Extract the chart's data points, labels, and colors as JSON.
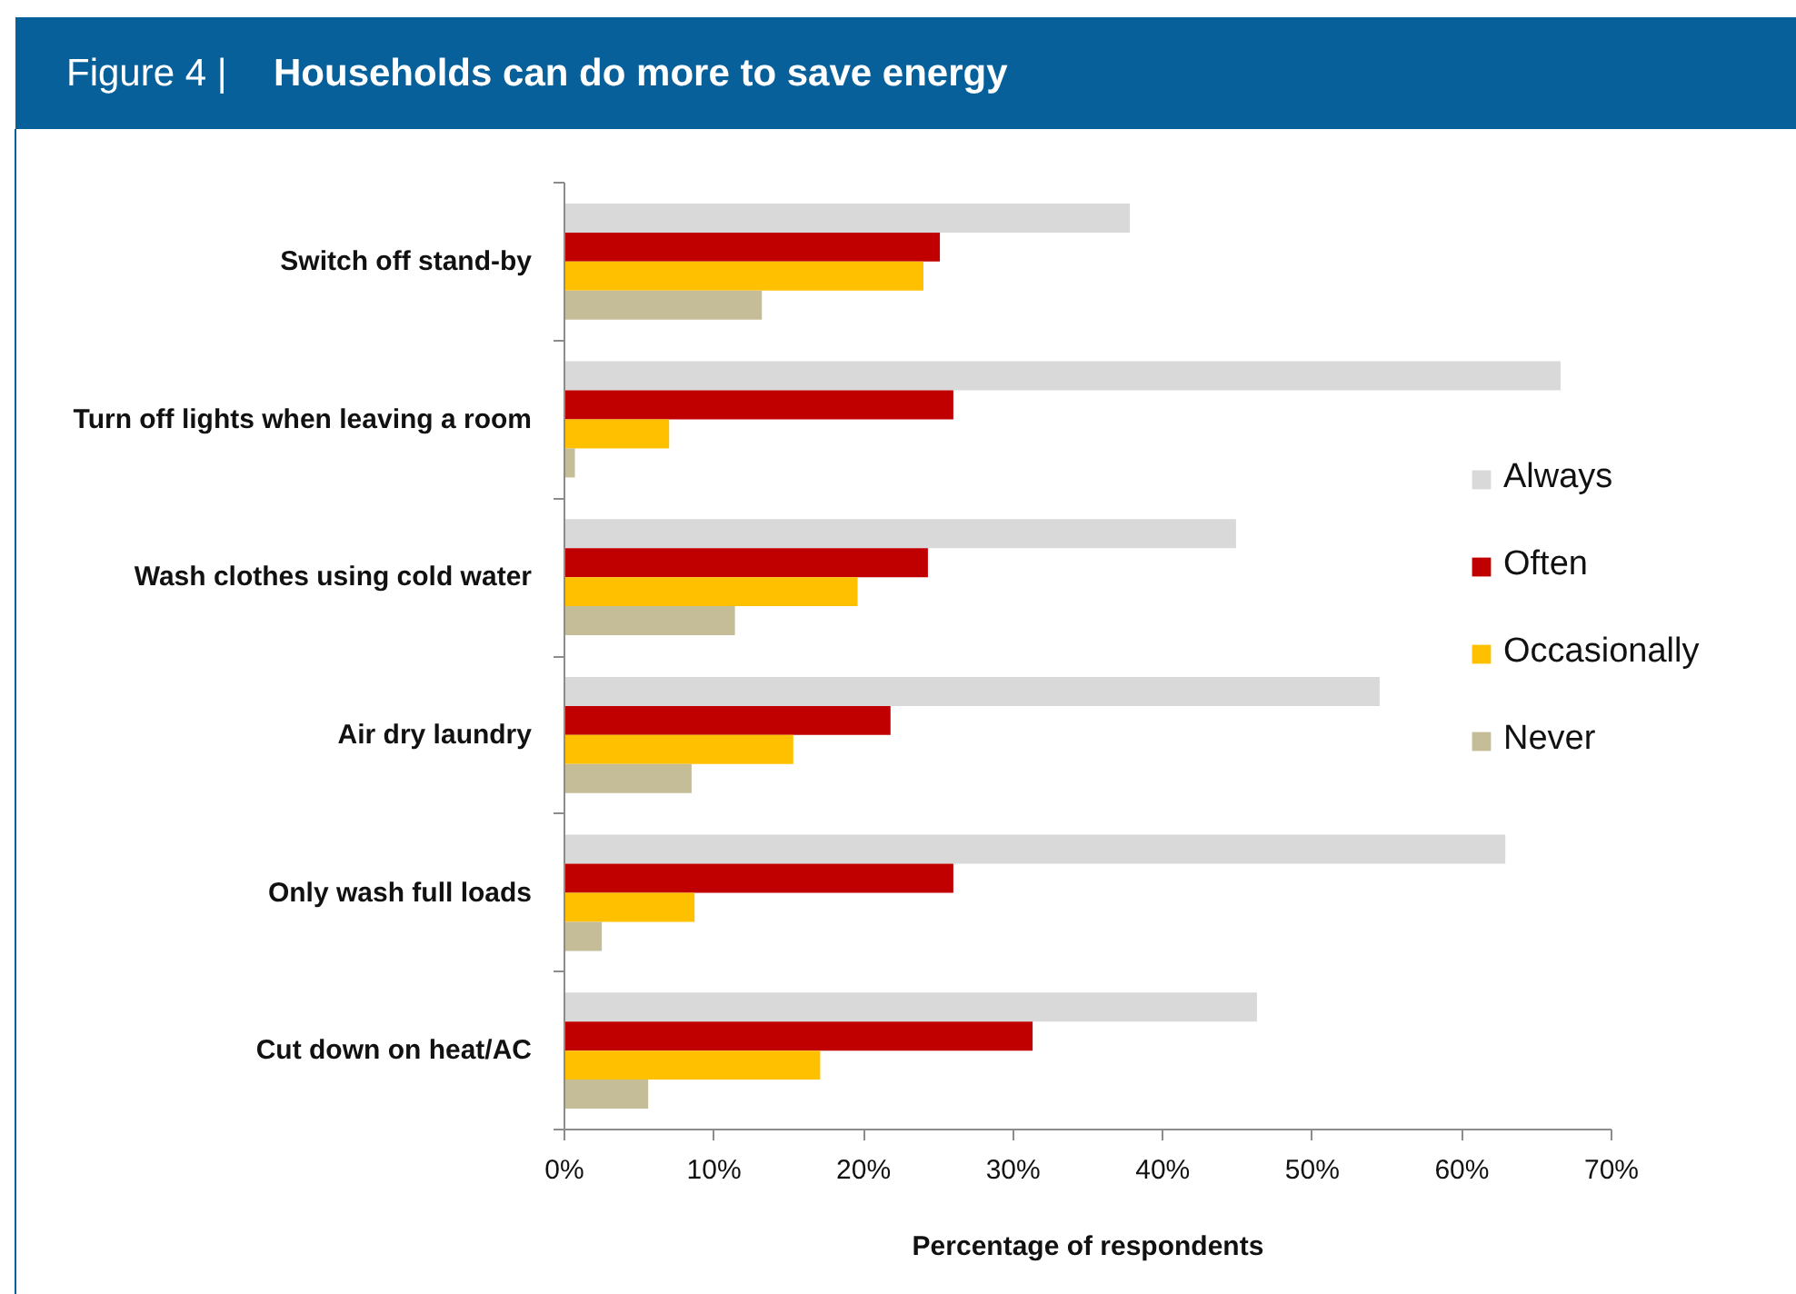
{
  "chart_data": {
    "type": "bar",
    "orientation": "horizontal",
    "title": "Households can do more to save energy",
    "annotations": [
      "Figure 4 |"
    ],
    "xlabel": "Percentage of respondents",
    "categories": [
      "Switch off stand-by",
      "Turn off lights when leaving a room",
      "Wash clothes using cold water",
      "Air dry laundry",
      "Only wash full loads",
      "Cut down on heat/AC"
    ],
    "series": [
      {
        "name": "Always",
        "color": "#d9d9d9",
        "values": [
          37.8,
          66.6,
          44.9,
          54.5,
          62.9,
          46.3
        ]
      },
      {
        "name": "Often",
        "color": "#c00000",
        "values": [
          25.1,
          26.0,
          24.3,
          21.8,
          26.0,
          31.3
        ]
      },
      {
        "name": "Occasionally",
        "color": "#ffc000",
        "values": [
          24.0,
          7.0,
          19.6,
          15.3,
          8.7,
          17.1
        ]
      },
      {
        "name": "Never",
        "color": "#c4bd97",
        "values": [
          13.2,
          0.7,
          11.4,
          8.5,
          2.5,
          5.6
        ]
      }
    ],
    "xlim": [
      0,
      70
    ],
    "xticks": [
      {
        "value": 0,
        "label": "0%"
      },
      {
        "value": 10,
        "label": "10%"
      },
      {
        "value": 20,
        "label": "20%"
      },
      {
        "value": 30,
        "label": "30%"
      },
      {
        "value": 40,
        "label": "40%"
      },
      {
        "value": 50,
        "label": "50%"
      },
      {
        "value": 60,
        "label": "60%"
      },
      {
        "value": 70,
        "label": "70%"
      }
    ],
    "grid": false,
    "legend": "right"
  }
}
